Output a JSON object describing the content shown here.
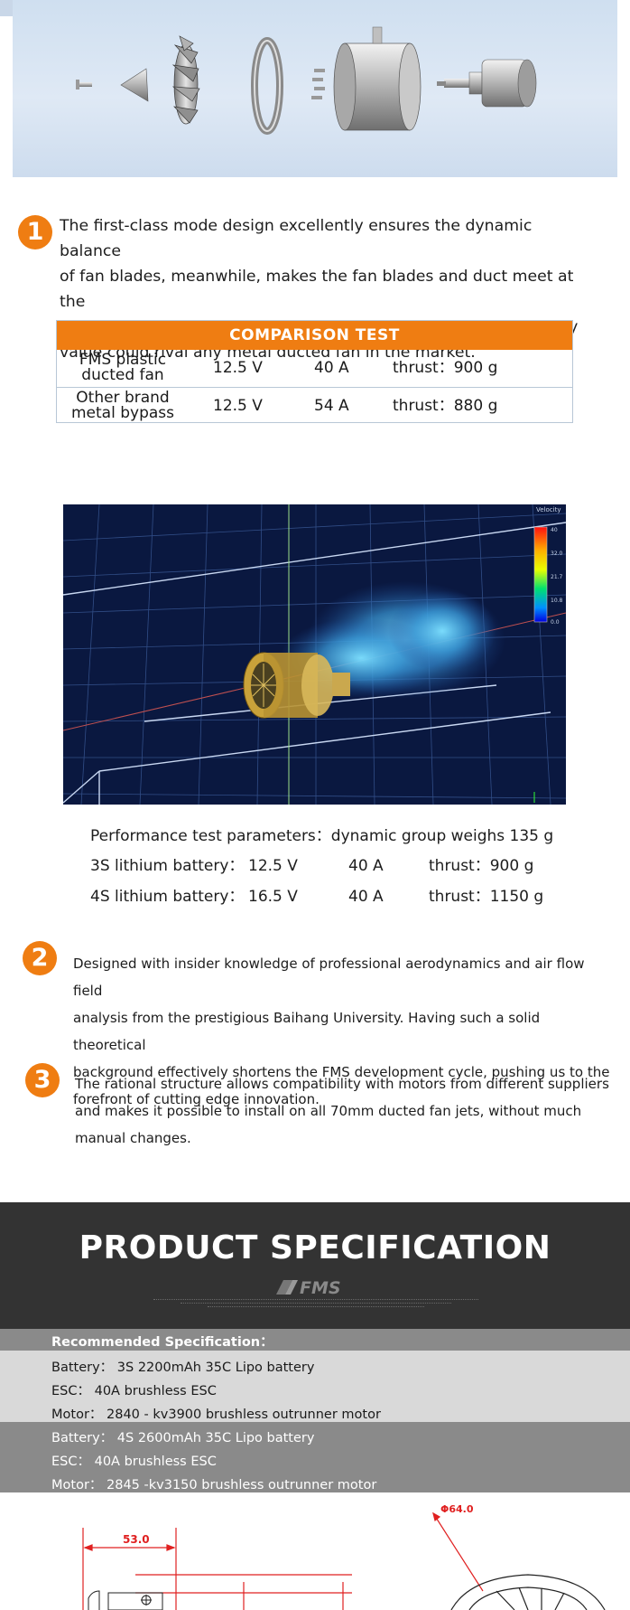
{
  "section1": {
    "number": "1",
    "text": "The first-class mode design excellently ensures the dynamic balance of fan blades, meanwhile, makes the fan blades and duct meet at the very place. We guarantee both the sound effect and the efficiency value could rival any metal ducted fan in the market.",
    "lines": [
      "The first-class mode design excellently ensures the dynamic balance",
      "of fan blades, meanwhile, makes the fan blades and duct meet at the",
      "very place. We guarantee both the sound effect and the efficiency",
      "value could rival any metal ducted fan in the market."
    ]
  },
  "comparison": {
    "title": "COMPARISON TEST",
    "rows": [
      {
        "name_line1": "FMS plastic",
        "name_line2": "ducted fan",
        "voltage": "12.5 V",
        "current": "40 A",
        "thrust": "thrust：900 g"
      },
      {
        "name_line1": "Other brand",
        "name_line2": "metal bypass",
        "voltage": "12.5 V",
        "current": "54 A",
        "thrust": "thrust：880 g"
      }
    ]
  },
  "simulation": {
    "legend_title": "Velocity",
    "legend_ticks": [
      "40",
      "32.0",
      "21.7",
      "10.8",
      "0.0"
    ],
    "colors": {
      "background": "#0a1840",
      "grid": "#3e5f9e"
    }
  },
  "performance": {
    "heading": "Performance test parameters：dynamic group weighs 135 g",
    "rows": [
      {
        "label": "3S lithium battery：",
        "voltage": "12.5 V",
        "current": "40 A",
        "thrust": "thrust：900 g"
      },
      {
        "label": "4S lithium battery：",
        "voltage": "16.5 V",
        "current": "40 A",
        "thrust": "thrust：1150 g"
      }
    ]
  },
  "section2": {
    "number": "2",
    "lines": [
      "Designed with insider knowledge of professional aerodynamics and air flow field",
      "analysis from the prestigious Baihang University. Having such a solid theoretical",
      "background effectively shortens the FMS development cycle, pushing us to the",
      "forefront of cutting edge innovation."
    ]
  },
  "section3": {
    "number": "3",
    "lines": [
      "The rational structure allows compatibility with motors from different suppliers",
      "and makes it possible to install on all 70mm ducted fan jets, without much",
      "manual changes."
    ]
  },
  "spec": {
    "title": "PRODUCT SPECIFICATION",
    "logo_text": "FMS",
    "recommended_label": "Recommended Specification：",
    "set1": {
      "battery": "Battery：  3S 2200mAh  35C Lipo battery",
      "esc": "ESC：  40A brushless ESC",
      "motor": "Motor：   2840 - kv3900 brushless outrunner  motor"
    },
    "set2": {
      "battery": "Battery：   4S 2600mAh 35C  Lipo battery",
      "esc": "ESC：  40A brushless ESC",
      "motor": "Motor：   2845 -kv3150 brushless outrunner motor"
    }
  },
  "drawings": {
    "left_dim": "53.0",
    "right_dim": "Φ64.0"
  },
  "colors": {
    "accent": "#ef7d12",
    "spec_dark": "#333333",
    "spec_grey": "#8a8a8a",
    "spec_light": "#d9d9d9",
    "dimension_red": "#e02020"
  }
}
